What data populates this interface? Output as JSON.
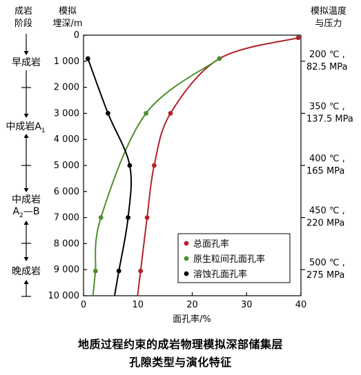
{
  "header": {
    "stage_label_line1": "成岩",
    "stage_label_line2": "阶段",
    "depth_label_line1": "模拟",
    "depth_label_line2": "埋深/m",
    "tp_label_line1": "模拟温度",
    "tp_label_line2": "与压力"
  },
  "stages": [
    {
      "name": "早成岩",
      "sub": "",
      "suffix": ""
    },
    {
      "name": "中成岩A",
      "sub": "1",
      "suffix": ""
    },
    {
      "name": "中成岩",
      "sub": "",
      "suffix": ""
    },
    {
      "name": "A",
      "sub": "2",
      "suffix": "—B"
    },
    {
      "name": "晚成岩",
      "sub": "",
      "suffix": ""
    }
  ],
  "tp_conditions": [
    {
      "depth": 1000,
      "temp": "200 ℃ ,",
      "pressure": "82.5 MPa"
    },
    {
      "depth": 3000,
      "temp": "350 ℃ ,",
      "pressure": "137.5 MPa"
    },
    {
      "depth": 5000,
      "temp": "400 ℃ ,",
      "pressure": "165 MPa"
    },
    {
      "depth": 7000,
      "temp": "450 ℃ ,",
      "pressure": "220 MPa"
    },
    {
      "depth": 9000,
      "temp": "500 ℃ ,",
      "pressure": "275 MPa"
    }
  ],
  "caption": {
    "line1": "地质过程约束的成岩物理模拟深部储集层",
    "line2": "孔隙类型与演化特征"
  },
  "chart_data": {
    "type": "line",
    "xlabel": "面孔率/%",
    "ylabel": "",
    "xlim": [
      0,
      40
    ],
    "ylim": [
      10000,
      0
    ],
    "x_ticks": [
      0,
      10,
      20,
      30,
      40
    ],
    "y_ticks": [
      0,
      1000,
      2000,
      3000,
      4000,
      5000,
      6000,
      7000,
      8000,
      9000,
      10000
    ],
    "y_tick_labels": [
      "0",
      "1 000",
      "2 000",
      "3 000",
      "4 000",
      "5 000",
      "6 000",
      "7 000",
      "8 000",
      "9 000",
      "10 000"
    ],
    "legend_position": "bottom-right",
    "series": [
      {
        "name": "总面孔率",
        "color": "#b3202a",
        "points": [
          [
            39.5,
            100
          ],
          [
            25,
            900
          ],
          [
            16,
            3000
          ],
          [
            13,
            5000
          ],
          [
            11.7,
            7000
          ],
          [
            10.5,
            9050
          ]
        ]
      },
      {
        "name": "原生粒间孔面孔率",
        "color": "#4d8e2c",
        "points": [
          [
            25,
            900
          ],
          [
            11.5,
            3000
          ],
          [
            3.2,
            7000
          ],
          [
            2.2,
            9050
          ]
        ]
      },
      {
        "name": "溶蚀孔面孔率",
        "color": "#000000",
        "points": [
          [
            0.8,
            900
          ],
          [
            4.5,
            3000
          ],
          [
            8.5,
            5000
          ],
          [
            8.2,
            7000
          ],
          [
            6.5,
            9050
          ]
        ]
      }
    ]
  }
}
